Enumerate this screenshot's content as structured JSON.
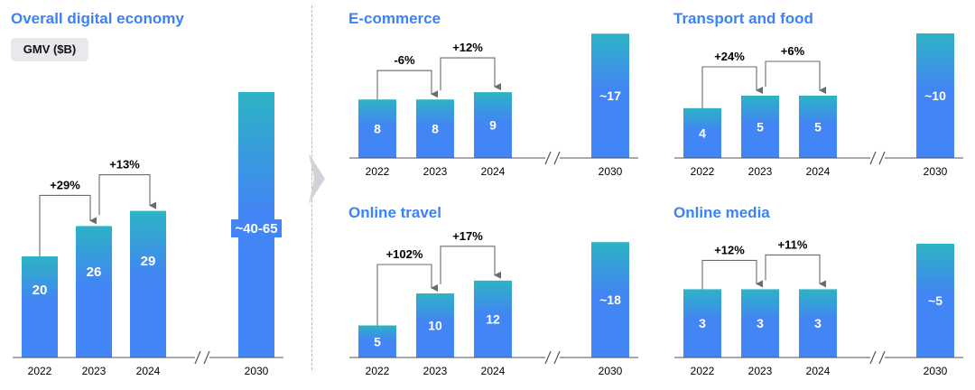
{
  "colors": {
    "accent": "#3b82f6",
    "bar_top": "#2db3c4",
    "bar_bottom": "#4285f4",
    "arrow": "#6b6b6b"
  },
  "overall": {
    "title": "Overall digital economy",
    "unit_badge": "GMV ($B)"
  },
  "chart_data": [
    {
      "id": "overall",
      "type": "bar",
      "title": "Overall digital economy",
      "categories": [
        "2022",
        "2023",
        "2024",
        "2030"
      ],
      "values": [
        20,
        26,
        29,
        52.5
      ],
      "value_labels": [
        "20",
        "26",
        "29",
        "~40-65"
      ],
      "axis_break": "between 2024 and 2030",
      "growth": [
        {
          "from": "2022",
          "to": "2023",
          "label": "+29%"
        },
        {
          "from": "2023",
          "to": "2024",
          "label": "+13%"
        }
      ]
    },
    {
      "id": "ecommerce",
      "type": "bar",
      "title": "E-commerce",
      "categories": [
        "2022",
        "2023",
        "2024",
        "2030"
      ],
      "values": [
        8,
        8,
        9,
        17
      ],
      "value_labels": [
        "8",
        "8",
        "9",
        "~17"
      ],
      "axis_break": "between 2024 and 2030",
      "growth": [
        {
          "from": "2022",
          "to": "2023",
          "label": "-6%"
        },
        {
          "from": "2023",
          "to": "2024",
          "label": "+12%"
        }
      ]
    },
    {
      "id": "transport",
      "type": "bar",
      "title": "Transport and food",
      "categories": [
        "2022",
        "2023",
        "2024",
        "2030"
      ],
      "values": [
        4,
        5,
        5,
        10
      ],
      "value_labels": [
        "4",
        "5",
        "5",
        "~10"
      ],
      "axis_break": "between 2024 and 2030",
      "growth": [
        {
          "from": "2022",
          "to": "2023",
          "label": "+24%"
        },
        {
          "from": "2023",
          "to": "2024",
          "label": "+6%"
        }
      ]
    },
    {
      "id": "travel",
      "type": "bar",
      "title": "Online travel",
      "categories": [
        "2022",
        "2023",
        "2024",
        "2030"
      ],
      "values": [
        5,
        10,
        12,
        18
      ],
      "value_labels": [
        "5",
        "10",
        "12",
        "~18"
      ],
      "axis_break": "between 2024 and 2030",
      "growth": [
        {
          "from": "2022",
          "to": "2023",
          "label": "+102%"
        },
        {
          "from": "2023",
          "to": "2024",
          "label": "+17%"
        }
      ]
    },
    {
      "id": "media",
      "type": "bar",
      "title": "Online media",
      "categories": [
        "2022",
        "2023",
        "2024",
        "2030"
      ],
      "values": [
        3,
        3,
        3,
        5
      ],
      "value_labels": [
        "3",
        "3",
        "3",
        "~5"
      ],
      "axis_break": "between 2024 and 2030",
      "growth": [
        {
          "from": "2022",
          "to": "2023",
          "label": "+12%"
        },
        {
          "from": "2023",
          "to": "2024",
          "label": "+11%"
        }
      ]
    }
  ]
}
